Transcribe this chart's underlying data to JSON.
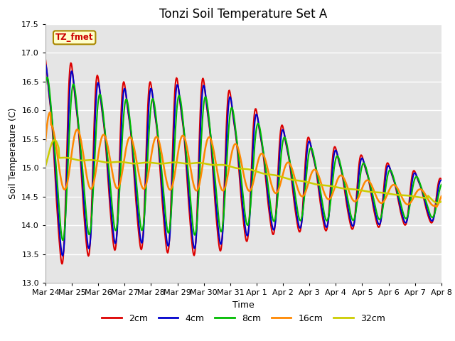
{
  "title": "Tonzi Soil Temperature Set A",
  "xlabel": "Time",
  "ylabel": "Soil Temperature (C)",
  "ylim": [
    13.0,
    17.5
  ],
  "yticks": [
    13.0,
    13.5,
    14.0,
    14.5,
    15.0,
    15.5,
    16.0,
    16.5,
    17.0,
    17.5
  ],
  "xtick_labels": [
    "Mar 24",
    "Mar 25",
    "Mar 26",
    "Mar 27",
    "Mar 28",
    "Mar 29",
    "Mar 30",
    "Mar 31",
    "Apr 1",
    "Apr 2",
    "Apr 3",
    "Apr 4",
    "Apr 5",
    "Apr 6",
    "Apr 7",
    "Apr 8"
  ],
  "series_colors": [
    "#dd0000",
    "#0000cc",
    "#00bb00",
    "#ff8800",
    "#cccc00"
  ],
  "series_labels": [
    "2cm",
    "4cm",
    "8cm",
    "16cm",
    "32cm"
  ],
  "legend_label": "TZ_fmet",
  "legend_box_facecolor": "#ffffcc",
  "legend_box_edgecolor": "#aa8800",
  "plot_bg_color": "#e5e5e5",
  "fig_bg_color": "#ffffff",
  "grid_color": "#ffffff",
  "title_fontsize": 12,
  "label_fontsize": 9,
  "tick_fontsize": 8,
  "legend_fontsize": 9,
  "n_days": 15,
  "n_pts": 720
}
